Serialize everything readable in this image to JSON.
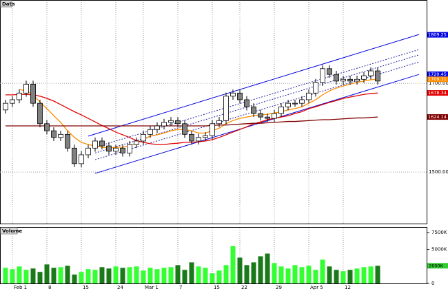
{
  "chart_data": {
    "type": "candlestick",
    "title": "Data",
    "categories": [
      null,
      "Feb 1",
      null,
      null,
      null,
      null,
      "8",
      null,
      null,
      null,
      null,
      "15",
      null,
      null,
      null,
      null,
      "24",
      null,
      null,
      null,
      "Mar 1",
      null,
      null,
      null,
      null,
      "7",
      null,
      null,
      null,
      null,
      "15",
      null,
      null,
      null,
      "22",
      null,
      null,
      null,
      null,
      "29",
      null,
      null,
      null,
      null,
      "Apr 5",
      null,
      null,
      null,
      null,
      "12",
      null,
      null,
      null,
      null,
      null
    ],
    "open": [
      1640,
      1655,
      1663,
      1678,
      1698,
      1655,
      1609,
      1593,
      1578,
      1585,
      1554,
      1519,
      1539,
      1554,
      1570,
      1559,
      1547,
      1554,
      1543,
      1562,
      1570,
      1585,
      1596,
      1604,
      1612,
      1616,
      1609,
      1585,
      1570,
      1578,
      1582,
      1609,
      1616,
      1671,
      1678,
      1663,
      1647,
      1632,
      1624,
      1621,
      1632,
      1647,
      1655,
      1655,
      1663,
      1678,
      1702,
      1733,
      1720,
      1705,
      1709,
      1705,
      1709,
      1717,
      1728
    ],
    "high": [
      1663,
      1671,
      1686,
      1706,
      1706,
      1663,
      1617,
      1601,
      1593,
      1593,
      1562,
      1547,
      1562,
      1578,
      1578,
      1567,
      1562,
      1562,
      1570,
      1578,
      1593,
      1604,
      1612,
      1620,
      1624,
      1624,
      1617,
      1593,
      1586,
      1590,
      1617,
      1624,
      1679,
      1686,
      1686,
      1671,
      1655,
      1640,
      1632,
      1640,
      1655,
      1663,
      1663,
      1671,
      1686,
      1710,
      1741,
      1741,
      1728,
      1717,
      1717,
      1717,
      1725,
      1736,
      1736
    ],
    "low": [
      1632,
      1647,
      1655,
      1670,
      1647,
      1601,
      1585,
      1570,
      1570,
      1546,
      1511,
      1511,
      1531,
      1546,
      1551,
      1539,
      1539,
      1535,
      1535,
      1554,
      1562,
      1577,
      1588,
      1596,
      1604,
      1601,
      1577,
      1562,
      1562,
      1570,
      1574,
      1601,
      1608,
      1663,
      1655,
      1639,
      1624,
      1616,
      1613,
      1613,
      1624,
      1639,
      1647,
      1647,
      1655,
      1670,
      1694,
      1712,
      1697,
      1697,
      1697,
      1697,
      1701,
      1709,
      1697
    ],
    "close": [
      1655,
      1663,
      1678,
      1698,
      1655,
      1609,
      1593,
      1578,
      1585,
      1554,
      1519,
      1539,
      1554,
      1570,
      1559,
      1547,
      1554,
      1543,
      1562,
      1570,
      1585,
      1596,
      1604,
      1612,
      1616,
      1609,
      1585,
      1570,
      1578,
      1582,
      1609,
      1616,
      1671,
      1678,
      1663,
      1647,
      1632,
      1624,
      1621,
      1632,
      1647,
      1655,
      1655,
      1663,
      1678,
      1702,
      1733,
      1720,
      1705,
      1709,
      1705,
      1709,
      1717,
      1728,
      1705
    ],
    "up_color": "#ffffff",
    "down_color": "#808080",
    "xlim": [
      -0.8,
      61.2
    ],
    "ylim": [
      1384,
      1883
    ],
    "yticks": [
      {
        "value": 1500,
        "label": "1500.00"
      },
      {
        "value": 1700,
        "label": "1700.00"
      }
    ],
    "grid": true,
    "series": [
      {
        "color": "#ff8c00",
        "values": [
          null,
          null,
          1686,
          1683,
          1674,
          1658,
          1643,
          1627,
          1612,
          1593,
          1578,
          1567,
          1562,
          1559,
          1556,
          1554,
          1556,
          1556,
          1559,
          1565,
          1573,
          1581,
          1584,
          1588,
          1593,
          1596,
          1596,
          1593,
          1588,
          1588,
          1593,
          1599,
          1609,
          1616,
          1621,
          1624,
          1627,
          1629,
          1630,
          1633,
          1636,
          1640,
          1643,
          1647,
          1655,
          1663,
          1674,
          1683,
          1689,
          1694,
          1698,
          1702,
          1705,
          1708,
          1709
        ]
      },
      {
        "color": "#e00000",
        "values": [
          1674,
          1674,
          1675,
          1675,
          1674,
          1671,
          1666,
          1660,
          1652,
          1644,
          1636,
          1629,
          1621,
          1613,
          1605,
          1598,
          1590,
          1584,
          1578,
          1571,
          1567,
          1564,
          1562,
          1562,
          1564,
          1565,
          1567,
          1567,
          1568,
          1570,
          1573,
          1578,
          1584,
          1590,
          1596,
          1602,
          1609,
          1613,
          1618,
          1621,
          1624,
          1627,
          1632,
          1636,
          1643,
          1647,
          1652,
          1657,
          1661,
          1666,
          1669,
          1672,
          1675,
          1677,
          1678
        ]
      },
      {
        "color": "#800000",
        "values": [
          1604,
          1604,
          1604,
          1604,
          1604,
          1604,
          1604,
          1604,
          1604,
          1604,
          1604,
          1604,
          1604,
          1604,
          1604,
          1604,
          1604,
          1604,
          1604,
          1604,
          1604,
          1604,
          1604,
          1604,
          1604,
          1604,
          1604,
          1604,
          1604,
          1604,
          1605,
          1606,
          1606,
          1607,
          1608,
          1609,
          1610,
          1610,
          1611,
          1612,
          1613,
          1614,
          1614,
          1615,
          1616,
          1617,
          1618,
          1618,
          1619,
          1620,
          1621,
          1622,
          1622,
          1623,
          1624
        ]
      }
    ],
    "trendlines": [
      {
        "x": [
          12,
          60
        ],
        "values": [
          1581,
          1810
        ],
        "color": "#0000e0",
        "dashed": false
      },
      {
        "x": [
          13,
          60
        ],
        "values": [
          1556,
          1776
        ],
        "color": "#2020a0",
        "dashed": true
      },
      {
        "x": [
          13,
          60
        ],
        "values": [
          1543,
          1764
        ],
        "color": "#2020a0",
        "dashed": true
      },
      {
        "x": [
          13,
          60
        ],
        "values": [
          1528,
          1748
        ],
        "color": "#2020a0",
        "dashed": true
      },
      {
        "x": [
          13,
          60
        ],
        "values": [
          1497,
          1720
        ],
        "color": "#0000e0",
        "dashed": false
      }
    ],
    "price_tags": [
      {
        "value": 1809.25,
        "label": "1809.25",
        "color": "#0000e0"
      },
      {
        "value": 1720.45,
        "label": "1720.45",
        "color": "#0000e0"
      },
      {
        "value": 1709.11,
        "label": "1709.11",
        "color": "#ff8c00"
      },
      {
        "value": 1678.34,
        "label": "1678.34",
        "color": "#e00000"
      },
      {
        "value": 1624.14,
        "label": "1624.14",
        "color": "#800000"
      }
    ],
    "volume": {
      "title": "Volume",
      "values": [
        2300,
        2100,
        2500,
        2000,
        2200,
        1700,
        2800,
        2300,
        2400,
        2600,
        1300,
        1700,
        2100,
        2000,
        2400,
        2200,
        2500,
        2300,
        2400,
        2500,
        1900,
        2300,
        2100,
        2300,
        2400,
        2700,
        2000,
        3100,
        2500,
        2300,
        1500,
        1900,
        2700,
        5500,
        3800,
        2700,
        3100,
        4000,
        4400,
        3000,
        2500,
        2200,
        2700,
        2400,
        2600,
        2000,
        3500,
        2500,
        2000,
        1800,
        2000,
        2200,
        2400,
        2500,
        2600
      ],
      "ylim": [
        0,
        8000
      ],
      "yticks": [
        0,
        {
          "value": 5000,
          "label": "5000K"
        },
        {
          "value": 7500,
          "label": "7500K"
        }
      ],
      "up_color": "#33ff33",
      "down_color": "#1a7a1a",
      "tag": {
        "value": 2600,
        "label": "2600K",
        "color": "#33cc33"
      }
    }
  }
}
